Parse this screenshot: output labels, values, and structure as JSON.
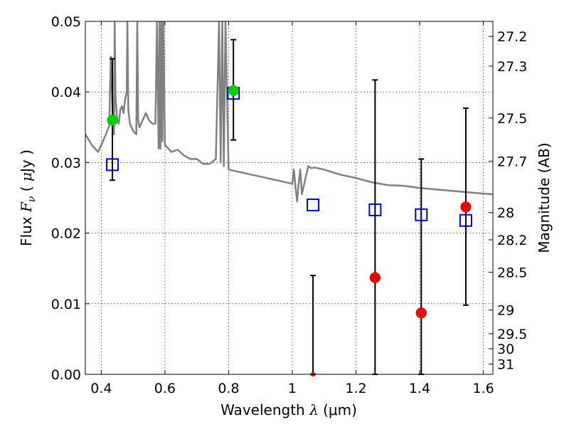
{
  "chart_data": {
    "type": "scatter",
    "xlabel": "Wavelength  λ (μm)",
    "xlabel_parts": {
      "text": "Wavelength",
      "symbol": "λ",
      "unit": "(μm)"
    },
    "ylabel": "Flux  Fν  ( μJy )",
    "ylabel_parts": {
      "text": "Flux",
      "symbol": "F",
      "sub": "ν",
      "unit_open": "(",
      "unit_mu": "μ",
      "unit_rest": "Jy )"
    },
    "y2label": "Magnitude (AB)",
    "xlim": [
      0.35,
      1.63
    ],
    "ylim": [
      0.0,
      0.05
    ],
    "grid": true,
    "x_ticks": [
      {
        "v": 0.4,
        "label": "0.4"
      },
      {
        "v": 0.6,
        "label": "0.6"
      },
      {
        "v": 0.8,
        "label": "0.8"
      },
      {
        "v": 1.0,
        "label": "1"
      },
      {
        "v": 1.2,
        "label": "1.2"
      },
      {
        "v": 1.4,
        "label": "1.4"
      },
      {
        "v": 1.6,
        "label": "1.6"
      }
    ],
    "y_ticks": [
      {
        "v": 0.0,
        "label": "0.00"
      },
      {
        "v": 0.01,
        "label": "0.01"
      },
      {
        "v": 0.02,
        "label": "0.02"
      },
      {
        "v": 0.03,
        "label": "0.03"
      },
      {
        "v": 0.04,
        "label": "0.04"
      },
      {
        "v": 0.05,
        "label": "0.05"
      }
    ],
    "y2_ticks": [
      {
        "mag": 27.2,
        "label": "27.2"
      },
      {
        "mag": 27.3,
        "label": "27.3"
      },
      {
        "mag": 27.5,
        "label": "27.5"
      },
      {
        "mag": 27.7,
        "label": "27.7"
      },
      {
        "mag": 28.0,
        "label": "28"
      },
      {
        "mag": 28.2,
        "label": "28.2"
      },
      {
        "mag": 28.5,
        "label": "28.5"
      },
      {
        "mag": 29.0,
        "label": "29"
      },
      {
        "mag": 29.5,
        "label": "29.5"
      },
      {
        "mag": 30.0,
        "label": "30"
      },
      {
        "mag": 31.0,
        "label": "31"
      }
    ],
    "series": [
      {
        "kind": "line",
        "color": "#808080",
        "x": [
          0.35,
          0.37,
          0.39,
          0.41,
          0.425,
          0.43,
          0.435,
          0.44,
          0.442,
          0.445,
          0.45,
          0.455,
          0.46,
          0.465,
          0.47,
          0.475,
          0.48,
          0.482,
          0.485,
          0.49,
          0.5,
          0.51,
          0.513,
          0.516,
          0.52,
          0.53,
          0.54,
          0.55,
          0.56,
          0.57,
          0.575,
          0.58,
          0.583,
          0.586,
          0.589,
          0.592,
          0.595,
          0.6,
          0.62,
          0.64,
          0.66,
          0.68,
          0.7,
          0.72,
          0.74,
          0.76,
          0.77,
          0.775,
          0.78,
          0.785,
          0.79,
          0.8,
          0.85,
          0.9,
          0.95,
          0.98,
          1.0,
          1.005,
          1.01,
          1.015,
          1.02,
          1.025,
          1.03,
          1.04,
          1.05,
          1.06,
          1.07,
          1.1,
          1.15,
          1.2,
          1.25,
          1.3,
          1.35,
          1.4,
          1.45,
          1.5,
          1.55,
          1.6,
          1.63
        ],
        "y": [
          0.034,
          0.0325,
          0.0315,
          0.0335,
          0.0352,
          0.045,
          0.038,
          0.034,
          0.05,
          0.039,
          0.036,
          0.0355,
          0.0375,
          0.038,
          0.037,
          0.039,
          0.04,
          0.05,
          0.0375,
          0.0355,
          0.0345,
          0.034,
          0.05,
          0.036,
          0.035,
          0.036,
          0.037,
          0.036,
          0.0355,
          0.0355,
          0.05,
          0.032,
          0.05,
          0.032,
          0.05,
          0.033,
          0.05,
          0.0325,
          0.0315,
          0.0318,
          0.031,
          0.0305,
          0.0305,
          0.0298,
          0.0298,
          0.0305,
          0.05,
          0.03,
          0.05,
          0.0295,
          0.05,
          0.029,
          0.0285,
          0.028,
          0.0275,
          0.0272,
          0.027,
          0.029,
          0.0265,
          0.0245,
          0.027,
          0.029,
          0.0255,
          0.0275,
          0.0295,
          0.0292,
          0.0293,
          0.029,
          0.0283,
          0.0278,
          0.0272,
          0.0268,
          0.0267,
          0.0264,
          0.0262,
          0.026,
          0.0258,
          0.0256,
          0.0255
        ]
      },
      {
        "kind": "markers",
        "marker": "open-square",
        "color": "#0000cc",
        "points": [
          {
            "x": 0.435,
            "y": 0.0297
          },
          {
            "x": 0.815,
            "y": 0.0398
          },
          {
            "x": 1.065,
            "y": 0.024
          },
          {
            "x": 1.26,
            "y": 0.0233
          },
          {
            "x": 1.405,
            "y": 0.0226
          },
          {
            "x": 1.545,
            "y": 0.0218
          }
        ]
      },
      {
        "kind": "markers",
        "marker": "filled-circle",
        "color": "#00cc00",
        "points": [
          {
            "x": 0.435,
            "y": 0.036,
            "err_low": 0.0275,
            "err_high": 0.0447
          },
          {
            "x": 0.815,
            "y": 0.0402,
            "err_low": 0.0332,
            "err_high": 0.0474
          }
        ]
      },
      {
        "kind": "markers",
        "marker": "filled-circle",
        "color": "#ee0000",
        "points": [
          {
            "x": 1.065,
            "y": 0.0,
            "err_low": 0.0,
            "err_high": 0.014
          },
          {
            "x": 1.26,
            "y": 0.0137,
            "err_low": 0.0,
            "err_high": 0.0417
          },
          {
            "x": 1.405,
            "y": 0.0087,
            "err_low": 0.0,
            "err_high": 0.0305
          },
          {
            "x": 1.545,
            "y": 0.0237,
            "err_low": 0.0098,
            "err_high": 0.0377
          }
        ]
      }
    ]
  }
}
